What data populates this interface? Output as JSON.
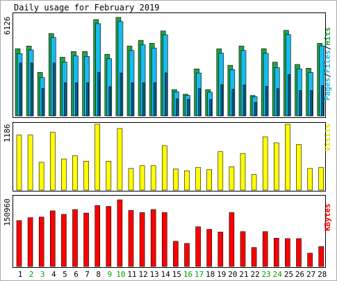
{
  "chart_data": [
    {
      "type": "bar",
      "title": "Daily usage for February 2019",
      "categories": [
        "1",
        "2",
        "3",
        "4",
        "5",
        "6",
        "7",
        "8",
        "9",
        "10",
        "11",
        "12",
        "13",
        "14",
        "15",
        "16",
        "17",
        "18",
        "19",
        "20",
        "21",
        "22",
        "23",
        "24",
        "25",
        "26",
        "27",
        "28"
      ],
      "weekend_days": [
        "2",
        "3",
        "9",
        "10",
        "16",
        "17",
        "23",
        "24"
      ],
      "ymax_label": "6126",
      "ylim": [
        0,
        6126
      ],
      "legend": {
        "pages": "Pages",
        "files": "Files",
        "hits": "Hits",
        "sep": "/"
      },
      "colors": {
        "hits": "#23a244",
        "files": "#17bbee",
        "pages": "#006090"
      },
      "series": [
        {
          "name": "Hits",
          "values": [
            4090,
            4250,
            2650,
            5010,
            3570,
            3920,
            3920,
            5870,
            3750,
            6000,
            4250,
            4600,
            4420,
            5170,
            1600,
            1320,
            2860,
            1600,
            4080,
            3080,
            4250,
            1240,
            4090,
            3270,
            5210,
            3130,
            2900,
            4420
          ]
        },
        {
          "name": "Files",
          "values": [
            3790,
            4010,
            2330,
            4780,
            3270,
            3650,
            3620,
            5620,
            3480,
            5750,
            3980,
            4330,
            4130,
            4940,
            1470,
            1250,
            2610,
            1440,
            3820,
            2820,
            3980,
            1170,
            3810,
            2940,
            4950,
            2860,
            2640,
            4260
          ]
        },
        {
          "name": "Pages",
          "values": [
            3220,
            3220,
            1680,
            3220,
            2020,
            2020,
            2020,
            2640,
            1780,
            2610,
            2020,
            2020,
            2020,
            2620,
            1040,
            1000,
            1660,
            1000,
            1900,
            1620,
            1880,
            820,
            1800,
            1660,
            2520,
            1540,
            1540,
            1840
          ]
        }
      ]
    },
    {
      "type": "bar",
      "ymax_label": "1186",
      "ylim": [
        0,
        1186
      ],
      "legend": {
        "visits": "Visits"
      },
      "colors": {
        "visits": "#ffff00"
      },
      "series": [
        {
          "name": "Visits",
          "values": [
            990,
            990,
            500,
            1040,
            560,
            620,
            520,
            1186,
            520,
            1110,
            390,
            440,
            440,
            800,
            380,
            350,
            410,
            370,
            690,
            420,
            660,
            280,
            960,
            850,
            1186,
            820,
            390,
            410
          ]
        }
      ]
    },
    {
      "type": "bar",
      "ymax_label": "150960",
      "ylim": [
        0,
        150960
      ],
      "legend": {
        "kbytes": "KBytes"
      },
      "colors": {
        "kbytes": "#ff0000"
      },
      "series": [
        {
          "name": "KBytes",
          "values": [
            104000,
            110500,
            112000,
            126000,
            118000,
            129000,
            121000,
            138000,
            136000,
            150960,
            127000,
            122000,
            129000,
            122000,
            57000,
            52000,
            90000,
            84000,
            78000,
            122000,
            79000,
            43000,
            79000,
            64000,
            63000,
            63000,
            30000,
            45000
          ]
        }
      ]
    }
  ]
}
